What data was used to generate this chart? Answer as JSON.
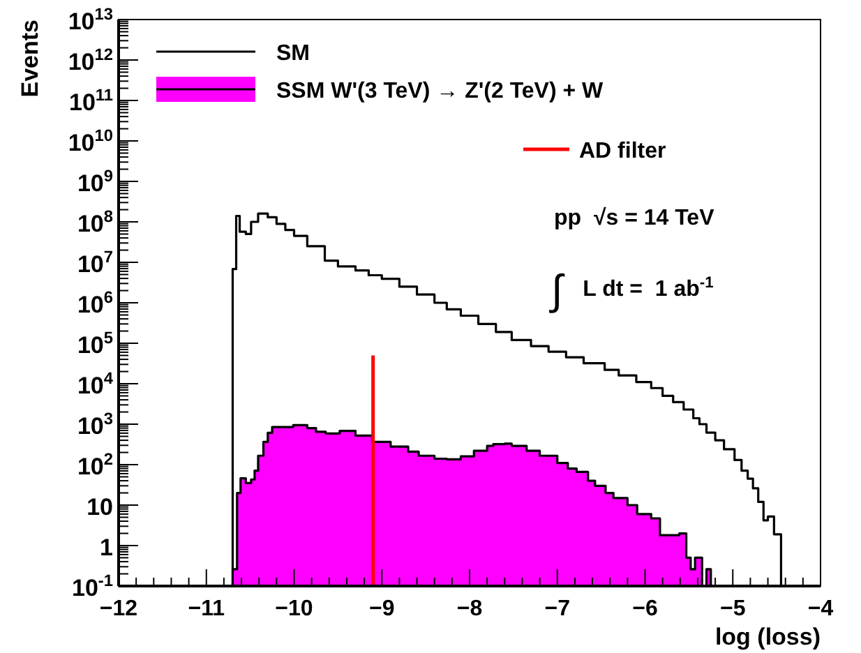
{
  "chart_data": {
    "type": "step",
    "xlabel": "log (loss)",
    "ylabel": "Events",
    "log": "y",
    "xlim": [
      -12,
      -4
    ],
    "xticks": [
      -12,
      -11,
      -10,
      -9,
      -8,
      -7,
      -6,
      -5,
      -4
    ],
    "ylim": [
      0.1,
      10000000000000.0
    ],
    "yticks": [
      {
        "value": 0.1,
        "label": "10$^{-1}$"
      },
      1,
      10,
      {
        "value": 100,
        "label": "10$^{2}$"
      },
      {
        "value": 1000,
        "label": "10$^{3}$"
      },
      {
        "value": 10000.0,
        "label": "10$^{4}$"
      },
      {
        "value": 100000.0,
        "label": "10$^{5}$"
      },
      {
        "value": 1000000.0,
        "label": "10$^{6}$"
      },
      {
        "value": 10000000.0,
        "label": "10$^{7}$"
      },
      {
        "value": 100000000.0,
        "label": "10$^{8}$"
      },
      {
        "value": 1000000000.0,
        "label": "10$^{9}$"
      },
      {
        "value": 10000000000.0,
        "label": "10$^{10}$"
      },
      {
        "value": 100000000000.0,
        "label": "10$^{11}$"
      },
      {
        "value": 1000000000000.0,
        "label": "10$^{12}$"
      },
      {
        "value": 10000000000000.0,
        "label": "10$^{13}$"
      }
    ],
    "grid": false,
    "legend": "top left",
    "series": [
      {
        "name": "SM",
        "color": "#000000",
        "x": [
          -10.75,
          -10.7,
          -10.66,
          -10.62,
          -10.55,
          -10.49,
          -10.41,
          -10.3,
          -10.2,
          -10.1,
          -10.0,
          -9.85,
          -9.65,
          -9.5,
          -9.3,
          -9.15,
          -9.0,
          -8.8,
          -8.6,
          -8.4,
          -8.26,
          -8.1,
          -7.9,
          -7.7,
          -7.52,
          -7.3,
          -7.1,
          -6.9,
          -6.7,
          -6.46,
          -6.3,
          -6.1,
          -5.93,
          -5.8,
          -5.68,
          -5.56,
          -5.45,
          -5.38,
          -5.3,
          -5.2,
          -5.1,
          -4.98,
          -4.9,
          -4.83,
          -4.77,
          -4.71,
          -4.65,
          -4.6,
          -4.53,
          -4.45
        ],
        "values": [
          0.1,
          6800000.0,
          140000000.0,
          57000000.0,
          50000000.0,
          100000000.0,
          160000000.0,
          130000000.0,
          89000000.0,
          63000000.0,
          45000000.0,
          25000000.0,
          11000000.0,
          7900000.0,
          6300000.0,
          4800000.0,
          3900000.0,
          2500000.0,
          1600000.0,
          1000000.0,
          690000.0,
          480000.0,
          300000.0,
          190000.0,
          120000.0,
          85000.0,
          62000.0,
          45000.0,
          32000.0,
          22000.0,
          16000.0,
          11000.0,
          7800.0,
          5000.0,
          3500.0,
          2300.0,
          1400.0,
          1000.0,
          620,
          400,
          240,
          130,
          71,
          45,
          26,
          12,
          4.2,
          5.2,
          1.9,
          0.1
        ]
      },
      {
        "name": "SSM W'(3 TeV) → Z'(2 TeV) + W",
        "type": "area",
        "color": "#ff00ff",
        "x": [
          -10.7,
          -10.65,
          -10.61,
          -10.55,
          -10.49,
          -10.45,
          -10.41,
          -10.35,
          -10.3,
          -10.25,
          -10.01,
          -9.85,
          -9.75,
          -9.64,
          -9.48,
          -9.3,
          -9.11,
          -8.9,
          -8.7,
          -8.58,
          -8.4,
          -8.26,
          -8.1,
          -7.95,
          -7.8,
          -7.73,
          -7.6,
          -7.52,
          -7.35,
          -7.2,
          -7.0,
          -6.88,
          -6.78,
          -6.65,
          -6.57,
          -6.45,
          -6.36,
          -6.2,
          -6.09,
          -5.93,
          -5.83,
          -5.61,
          -5.53,
          -5.48,
          -5.43,
          -5.35,
          -5.34,
          -5.3,
          -5.25
        ],
        "values": [
          0.26,
          20,
          46,
          35,
          43,
          71,
          166,
          365,
          610,
          850,
          950,
          800,
          650,
          590,
          680,
          520,
          365,
          280,
          210,
          166,
          140,
          135,
          160,
          220,
          290,
          320,
          330,
          290,
          220,
          166,
          110,
          80,
          66,
          40,
          30,
          20,
          15,
          10,
          6,
          4.7,
          1.8,
          2,
          0.5,
          0.26,
          0.5,
          0.5,
          null,
          0.26,
          0.26
        ]
      },
      {
        "name": "AD filter",
        "type": "line",
        "color": "#ff0000",
        "x": [
          -9.1,
          -9.1
        ],
        "values": [
          0.1,
          50000.0
        ]
      }
    ],
    "annotations": [
      "pp  √s = 14 TeV",
      "∫ L dt =  1 ab$^{-1}$"
    ]
  }
}
